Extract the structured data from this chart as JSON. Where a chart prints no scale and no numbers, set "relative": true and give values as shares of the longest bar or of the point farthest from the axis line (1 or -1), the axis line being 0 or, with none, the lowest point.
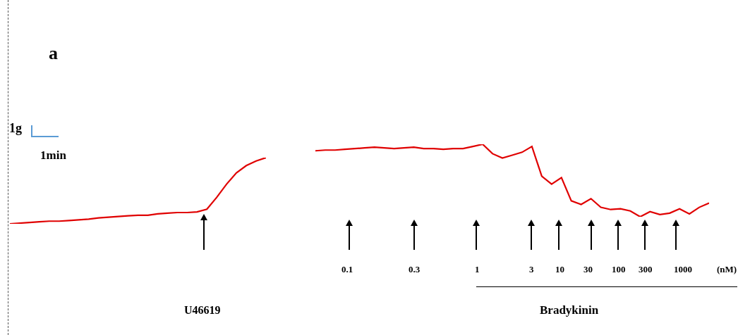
{
  "chart_data": [
    {
      "type": "line",
      "relative": true,
      "categories": [
        null,
        null,
        null,
        null,
        null,
        null,
        null,
        null,
        null,
        null,
        null,
        null,
        null,
        null,
        null,
        null,
        null,
        null,
        null,
        null,
        null,
        null,
        null,
        null,
        null,
        null,
        null
      ],
      "series": [
        {
          "color": "#e00000",
          "values": [
            0,
            0.01,
            0.02,
            0.03,
            0.04,
            0.04,
            0.05,
            0.06,
            0.07,
            0.09,
            0.1,
            0.11,
            0.12,
            0.13,
            0.13,
            0.15,
            0.16,
            0.17,
            0.17,
            0.18,
            0.22,
            0.4,
            0.6,
            0.77,
            0.88,
            0.95,
            1
          ]
        }
      ],
      "annotations": [
        "a",
        "1g",
        "1min",
        "U46619"
      ]
    },
    {
      "type": "line",
      "relative": true,
      "categories": [
        null,
        null,
        null,
        null,
        null,
        null,
        null,
        null,
        null,
        null,
        null,
        null,
        null,
        null,
        null,
        null,
        null,
        null,
        null,
        null,
        null,
        null,
        null,
        null,
        null,
        null,
        null,
        null,
        null,
        null,
        null,
        null,
        null,
        null,
        null,
        null,
        null,
        null,
        null,
        null,
        null
      ],
      "series": [
        {
          "color": "#e00000",
          "values": [
            0.91,
            0.92,
            0.92,
            0.93,
            0.94,
            0.95,
            0.96,
            0.95,
            0.94,
            0.95,
            0.96,
            0.94,
            0.94,
            0.93,
            0.94,
            0.94,
            0.97,
            1,
            0.87,
            0.81,
            0.85,
            0.89,
            0.97,
            0.56,
            0.45,
            0.54,
            0.22,
            0.17,
            0.25,
            0.13,
            0.1,
            0.11,
            0.08,
            0,
            0.07,
            0.03,
            0.05,
            0.11,
            0.04,
            0.13,
            0.19
          ]
        }
      ],
      "annotations": [
        "0.1",
        "0.3",
        "1",
        "3",
        "10",
        "30",
        "100",
        "300",
        "1000",
        "(nM)",
        "Bradykinin"
      ]
    }
  ]
}
